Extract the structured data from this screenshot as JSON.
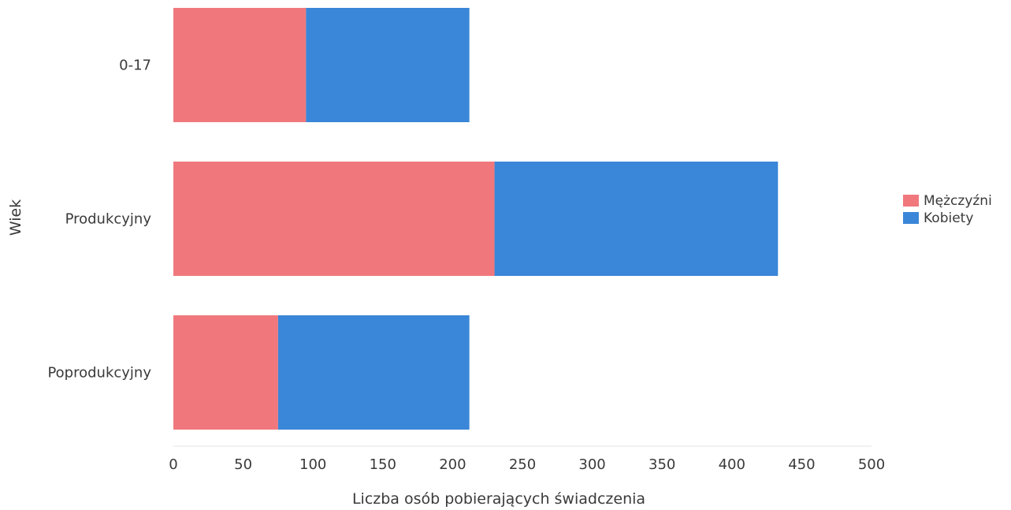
{
  "chart_data": {
    "type": "bar",
    "orientation": "horizontal",
    "stacked": true,
    "categories": [
      "0-17",
      "Produkcyjny",
      "Poprodukcyjny"
    ],
    "series": [
      {
        "name": "Mężczyźni",
        "values": [
          95,
          230,
          75
        ],
        "color": "#f0787c"
      },
      {
        "name": "Kobiety",
        "values": [
          117,
          203,
          137
        ],
        "color": "#3a86d8"
      }
    ],
    "xlabel": "Liczba osób pobierających świadczenia",
    "ylabel": "Wiek",
    "xlim": [
      0,
      500
    ],
    "xticks": [
      0,
      50,
      100,
      150,
      200,
      250,
      300,
      350,
      400,
      450,
      500
    ],
    "legend_position": "right",
    "grid": false
  }
}
